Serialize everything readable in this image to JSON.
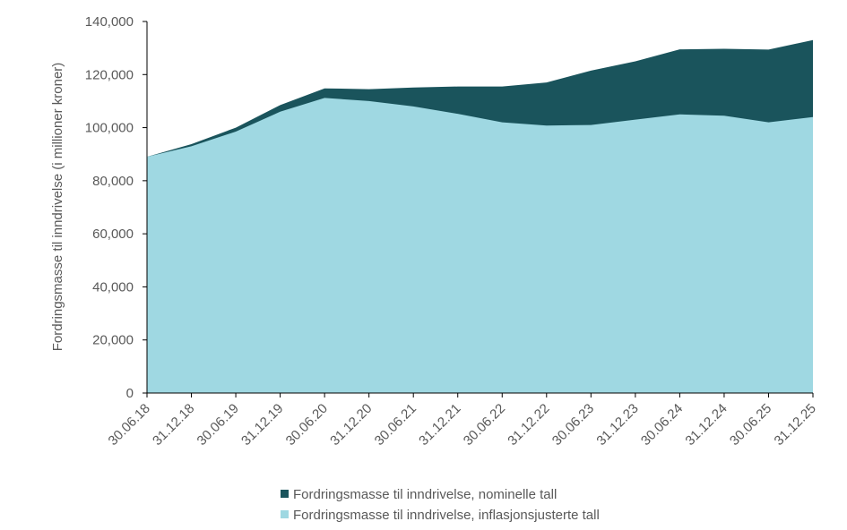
{
  "chart_data": {
    "type": "area",
    "ylabel": "Fordringsmasse til inndrivelse (i millioner kroner)",
    "xlabel": "",
    "title": "",
    "categories": [
      "30.06.18",
      "31.12.18",
      "30.06.19",
      "31.12.19",
      "30.06.20",
      "31.12.20",
      "30.06.21",
      "31.12.21",
      "30.06.22",
      "31.12.22",
      "30.06.23",
      "31.12.23",
      "30.06.24",
      "31.12.24",
      "30.06.25",
      "31.12.25"
    ],
    "ylim": [
      0,
      140000
    ],
    "yticks": [
      0,
      20000,
      40000,
      60000,
      80000,
      100000,
      120000,
      140000
    ],
    "ytick_labels": [
      "0",
      "20,000",
      "40,000",
      "60,000",
      "80,000",
      "100,000",
      "120,000",
      "140,000"
    ],
    "series": [
      {
        "name": "Fordringsmasse til inndrivelse, nominelle tall",
        "color": "#1a545c",
        "values": [
          89000,
          93800,
          100000,
          108500,
          114800,
          114500,
          115100,
          115500,
          115500,
          117000,
          121500,
          125000,
          129500,
          129700,
          129400,
          133000
        ]
      },
      {
        "name": "Fordringsmasse til inndrivelse, inflasjonsjusterte tall",
        "color": "#9fd8e2",
        "values": [
          89000,
          93000,
          98500,
          106000,
          111200,
          110000,
          108000,
          105200,
          102000,
          100800,
          101000,
          103000,
          105000,
          104500,
          102000,
          104000
        ]
      }
    ],
    "legend_position": "bottom",
    "grid": false
  }
}
